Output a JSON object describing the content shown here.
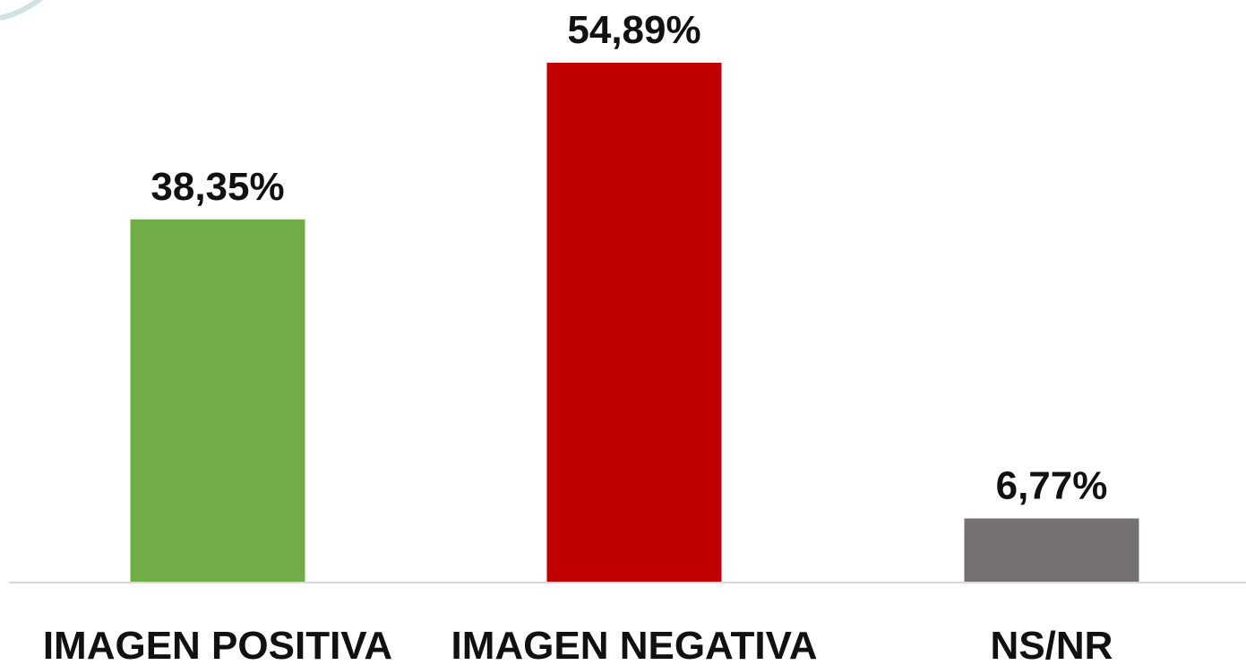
{
  "chart_data": {
    "type": "bar",
    "categories": [
      "IMAGEN POSITIVA",
      "IMAGEN NEGATIVA",
      "NS/NR"
    ],
    "values": [
      38.35,
      54.89,
      6.77
    ],
    "data_labels": [
      "38,35%",
      "54,89%",
      "6,77%"
    ],
    "colors": [
      "#70AD47",
      "#C00000",
      "#767171"
    ],
    "ylim": [
      0,
      54.89
    ],
    "grid": false,
    "legend": "none"
  }
}
